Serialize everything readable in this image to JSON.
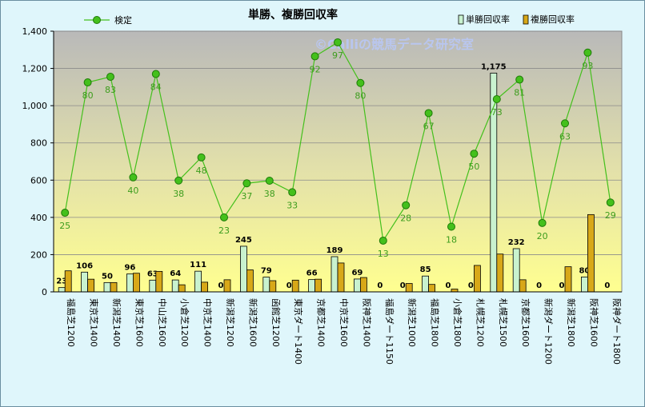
{
  "chart_data": {
    "type": "bar",
    "title": "単勝、複勝回収率",
    "watermark": "©Calliの競馬データ研究室",
    "categories": [
      "福島芝1200",
      "東京芝1400",
      "新潟芝1400",
      "東京芝1600",
      "中山芝1600",
      "小倉芝1200",
      "中京芝1400",
      "新潟芝1200",
      "新潟芝1600",
      "函館芝1200",
      "東京ダート1400",
      "京都芝1400",
      "中京芝1600",
      "阪神芝1400",
      "福島ダート1150",
      "新潟芝1000",
      "福島芝1800",
      "小倉芝1800",
      "札幌芝1200",
      "札幌芝1500",
      "京都芝1600",
      "新潟ダート1200",
      "新潟芝1800",
      "阪神芝1600",
      "阪神ダート1800"
    ],
    "y_ticks": [
      "0",
      "200",
      "400",
      "600",
      "800",
      "1,000",
      "1,200",
      "1,400"
    ],
    "ylim": [
      0,
      1400
    ],
    "legend": {
      "placement": "top",
      "line_series": "検定",
      "bar_series": [
        "単勝回収率",
        "複勝回収率"
      ]
    },
    "series": [
      {
        "name": "単勝回収率",
        "type": "bar",
        "color": "#c9f2cf",
        "values": [
          23,
          106,
          50,
          96,
          63,
          64,
          111,
          0,
          245,
          79,
          0,
          66,
          189,
          69,
          0,
          0,
          85,
          0,
          0,
          1175,
          232,
          0,
          0,
          80,
          0
        ],
        "labels": [
          "23",
          "106",
          "50",
          "96",
          "63",
          "64",
          "111",
          "0",
          "245",
          "79",
          "0",
          "66",
          "189",
          "69",
          "0",
          "0",
          "85",
          "0",
          "0",
          "1,175",
          "232",
          "0",
          "0",
          "80",
          "0"
        ]
      },
      {
        "name": "複勝回収率",
        "type": "bar",
        "color": "#d8a818",
        "values": [
          113,
          68,
          50,
          100,
          110,
          38,
          52,
          65,
          118,
          60,
          63,
          68,
          155,
          77,
          0,
          45,
          40,
          15,
          142,
          203,
          65,
          0,
          135,
          415,
          0
        ]
      },
      {
        "name": "検定",
        "type": "line",
        "color": "#44c01c",
        "values": [
          425,
          1125,
          1155,
          615,
          1170,
          598,
          722,
          400,
          583,
          597,
          535,
          1265,
          1340,
          1122,
          275,
          465,
          960,
          350,
          742,
          1035,
          1140,
          370,
          905,
          1285,
          480
        ],
        "labels": [
          "25",
          "80",
          "83",
          "40",
          "84",
          "38",
          "48",
          "23",
          "37",
          "38",
          "33",
          "92",
          "97",
          "80",
          "13",
          "28",
          "67",
          "18",
          "50",
          "73",
          "81",
          "20",
          "63",
          "93",
          "29"
        ]
      }
    ]
  }
}
